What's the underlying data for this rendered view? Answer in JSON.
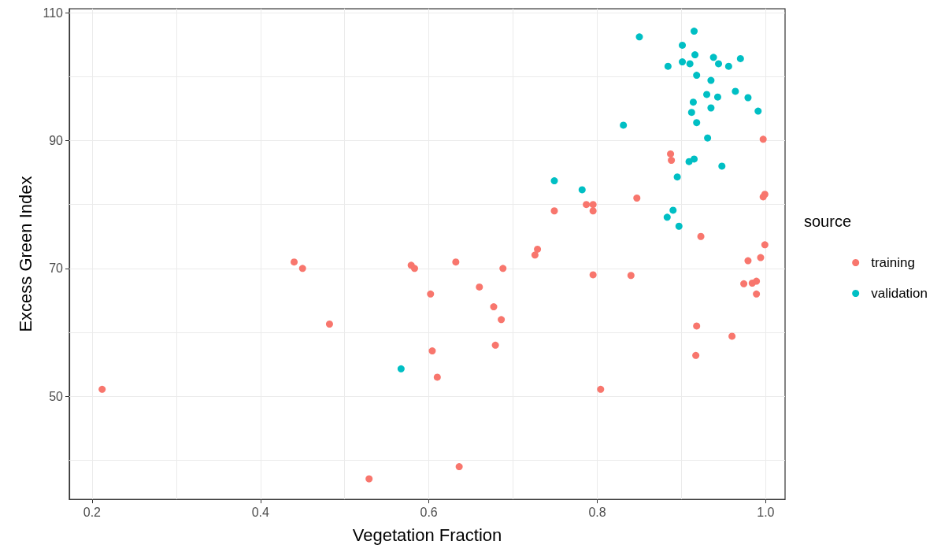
{
  "chart_data": {
    "type": "scatter",
    "xlabel": "Vegetation Fraction",
    "ylabel": "Excess Green Index",
    "legend_title": "source",
    "xlim": [
      0.173,
      1.023
    ],
    "ylim": [
      33.9,
      110.6
    ],
    "xticks": [
      {
        "value": 0.2,
        "label": "0.2"
      },
      {
        "value": 0.3,
        "label": null
      },
      {
        "value": 0.4,
        "label": "0.4"
      },
      {
        "value": 0.5,
        "label": null
      },
      {
        "value": 0.6,
        "label": "0.6"
      },
      {
        "value": 0.7,
        "label": null
      },
      {
        "value": 0.8,
        "label": "0.8"
      },
      {
        "value": 0.9,
        "label": null
      },
      {
        "value": 1.0,
        "label": "1.0"
      }
    ],
    "yticks": [
      {
        "value": 40,
        "label": null
      },
      50,
      {
        "value": 60,
        "label": null
      },
      70,
      {
        "value": 80,
        "label": null
      },
      90,
      {
        "value": 100,
        "label": null
      },
      110
    ],
    "grid": true,
    "legend": "right",
    "marker": "circle",
    "series": [
      {
        "name": "training",
        "color": "#f8766d",
        "x": [
          0.212,
          0.44,
          0.45,
          0.482,
          0.529,
          0.579,
          0.583,
          0.602,
          0.604,
          0.61,
          0.632,
          0.636,
          0.66,
          0.677,
          0.679,
          0.686,
          0.688,
          0.726,
          0.729,
          0.795,
          0.804,
          0.749,
          0.787,
          0.795,
          0.795,
          0.847,
          0.887,
          0.888,
          0.997,
          0.999,
          0.997,
          0.923,
          0.999,
          0.994,
          0.979,
          0.974,
          0.984,
          0.989,
          0.989,
          0.84,
          0.918,
          0.96,
          0.917
        ],
        "values": [
          51.1,
          71.0,
          70.0,
          61.3,
          37.1,
          70.5,
          70.0,
          66.0,
          57.1,
          53.0,
          71.0,
          39.0,
          67.1,
          64.0,
          58.0,
          62.0,
          70.0,
          72.1,
          73.0,
          69.0,
          51.1,
          79.0,
          80.0,
          80.0,
          79.0,
          81.0,
          87.9,
          86.9,
          90.2,
          81.6,
          81.2,
          75.0,
          73.7,
          71.7,
          71.2,
          67.6,
          67.7,
          68.0,
          66.0,
          68.9,
          61.0,
          59.4,
          56.4
        ]
      },
      {
        "name": "validation",
        "color": "#00bfc4",
        "x": [
          0.567,
          0.749,
          0.782,
          0.909,
          0.915,
          0.948,
          0.895,
          0.89,
          0.883,
          0.897,
          0.85,
          0.915,
          0.901,
          0.916,
          0.938,
          0.97,
          0.884,
          0.901,
          0.91,
          0.944,
          0.956,
          0.918,
          0.935,
          0.964,
          0.93,
          0.943,
          0.979,
          0.914,
          0.935,
          0.991,
          0.912,
          0.918,
          0.831,
          0.931
        ],
        "values": [
          54.3,
          83.7,
          82.3,
          86.7,
          87.1,
          86.0,
          84.3,
          79.1,
          78.0,
          76.6,
          106.2,
          107.1,
          104.9,
          103.4,
          103.0,
          102.8,
          101.6,
          102.3,
          102.0,
          102.0,
          101.6,
          100.2,
          99.4,
          97.7,
          97.2,
          96.8,
          96.7,
          96.0,
          95.1,
          94.6,
          94.4,
          92.8,
          92.4,
          90.4
        ]
      }
    ]
  }
}
